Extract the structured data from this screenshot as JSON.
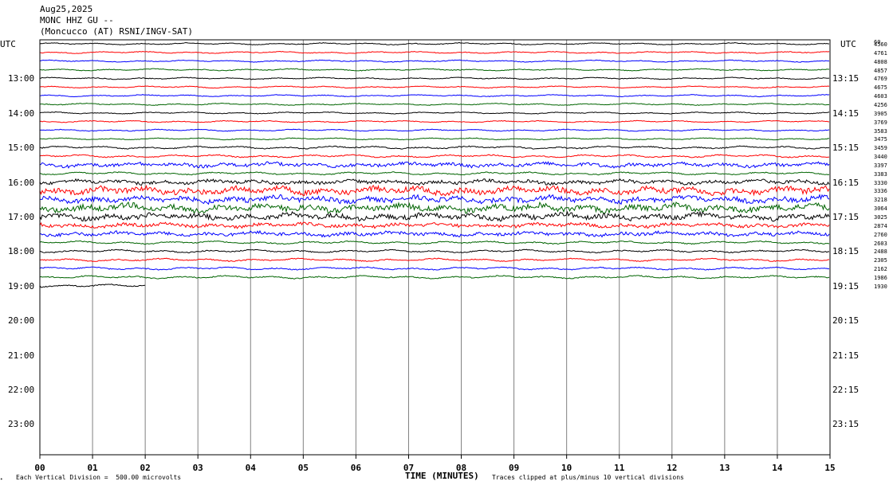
{
  "header": {
    "date": "Aug25,2025",
    "station": "MONC HHZ GU --",
    "location": "(Moncucco (AT) RSNI/INGV-SAT)"
  },
  "axis_labels": {
    "left_tz": "UTC",
    "right_tz": "UTC",
    "xlabel": "TIME (MINUTES)"
  },
  "footer": {
    "vertical_division": "Each Vertical Division =  500.00 microvolts",
    "clipping_note": "Traces clipped at plus/minus 10 vertical divisions"
  },
  "colors": {
    "trace_cycle": [
      "#000000",
      "#ff0000",
      "#0000ff",
      "#006400"
    ],
    "grid": "#808080",
    "frame": "#000000"
  },
  "chart_data": {
    "type": "line",
    "title": "MONC HHZ GU --",
    "xlabel": "TIME (MINUTES)",
    "xlim": [
      0,
      15
    ],
    "x_ticks": [
      "00",
      "01",
      "02",
      "03",
      "04",
      "05",
      "06",
      "07",
      "08",
      "09",
      "10",
      "11",
      "12",
      "13",
      "14",
      "15"
    ],
    "left_hour_labels": [
      "13:00",
      "14:00",
      "15:00",
      "16:00",
      "17:00",
      "18:00",
      "19:00",
      "20:00",
      "21:00",
      "22:00",
      "23:00"
    ],
    "right_hour_labels": [
      "13:15",
      "14:15",
      "15:15",
      "16:15",
      "17:15",
      "18:15",
      "19:15",
      "20:15",
      "21:15",
      "22:15",
      "23:15"
    ],
    "rms_values": [
      "4560",
      "4761",
      "4808",
      "4857",
      "4769",
      "4675",
      "4603",
      "4256",
      "3905",
      "3769",
      "3583",
      "3475",
      "3459",
      "3440",
      "3397",
      "3383",
      "3330",
      "3336",
      "3218",
      "3064",
      "3025",
      "2874",
      "2760",
      "2603",
      "2488",
      "2305",
      "2162",
      "1986",
      "1930"
    ],
    "first_rms_overlay": "60",
    "trace_count": 29,
    "last_trace_minutes": 2,
    "trace_amplitude_level": [
      2,
      2,
      2,
      2,
      2,
      2,
      2,
      2,
      2,
      2,
      2,
      2,
      3,
      3,
      4,
      3,
      4,
      7,
      6,
      7,
      6,
      4,
      4,
      3,
      3,
      3,
      3,
      3,
      3
    ]
  }
}
